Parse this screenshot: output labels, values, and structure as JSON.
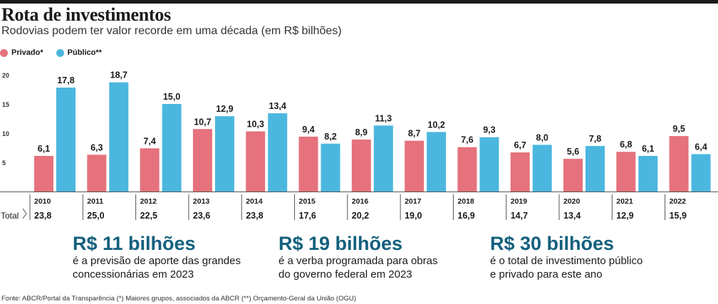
{
  "header": {
    "title": "Rota de investimentos",
    "subtitle": "Rodovias podem ter valor recorde em uma década (em R$ bilhões)"
  },
  "legend": {
    "private_label": "Privado*",
    "public_label": "Público**",
    "private_color": "#e5727c",
    "public_color": "#4bb7df"
  },
  "chart_data": {
    "type": "bar",
    "categories": [
      "2010",
      "2011",
      "2012",
      "2013",
      "2014",
      "2015",
      "2016",
      "2017",
      "2018",
      "2019",
      "2020",
      "2021",
      "2022"
    ],
    "series": [
      {
        "name": "Privado*",
        "values": [
          6.1,
          6.3,
          7.4,
          10.7,
          10.3,
          9.4,
          8.9,
          8.7,
          7.6,
          6.7,
          5.6,
          6.8,
          9.5
        ]
      },
      {
        "name": "Público**",
        "values": [
          17.8,
          18.7,
          15.0,
          12.9,
          13.4,
          8.2,
          11.3,
          10.2,
          9.3,
          8.0,
          7.8,
          6.1,
          6.4
        ]
      }
    ],
    "data_labels": {
      "private": [
        "6,1",
        "6,3",
        "7,4",
        "10,7",
        "10,3",
        "9,4",
        "8,9",
        "8,7",
        "7,6",
        "6,7",
        "5,6",
        "6,8",
        "9,5"
      ],
      "public": [
        "17,8",
        "18,7",
        "15,0",
        "12,9",
        "13,4",
        "8,2",
        "11,3",
        "10,2",
        "9,3",
        "8,0",
        "7,8",
        "6,1",
        "6,4"
      ]
    },
    "yticks": [
      "5",
      "10",
      "15",
      "20"
    ],
    "ylim": [
      0,
      20
    ],
    "totals_label": "Total",
    "totals": [
      "23,8",
      "25,0",
      "22,5",
      "23,6",
      "23,8",
      "17,6",
      "20,2",
      "19,0",
      "16,9",
      "14,7",
      "13,4",
      "12,9",
      "15,9"
    ],
    "grid": false,
    "legend_position": "top-left"
  },
  "highlights": [
    {
      "value": "R$ 11 bilhões",
      "line1": "é a previsão de aporte das grandes",
      "line2": "concessionárias em 2023"
    },
    {
      "value": "R$ 19 bilhões",
      "line1": "é a verba programada para obras",
      "line2": "do governo federal em 2023"
    },
    {
      "value": "R$ 30 bilhões",
      "line1": "é o total de investimento público",
      "line2": "e privado para este ano"
    }
  ],
  "source": "Fonte: ABCR/Portal da Transparência (*) Maiores grupos, associados da ABCR (**) Orçamento-Geral da União (OGU)"
}
